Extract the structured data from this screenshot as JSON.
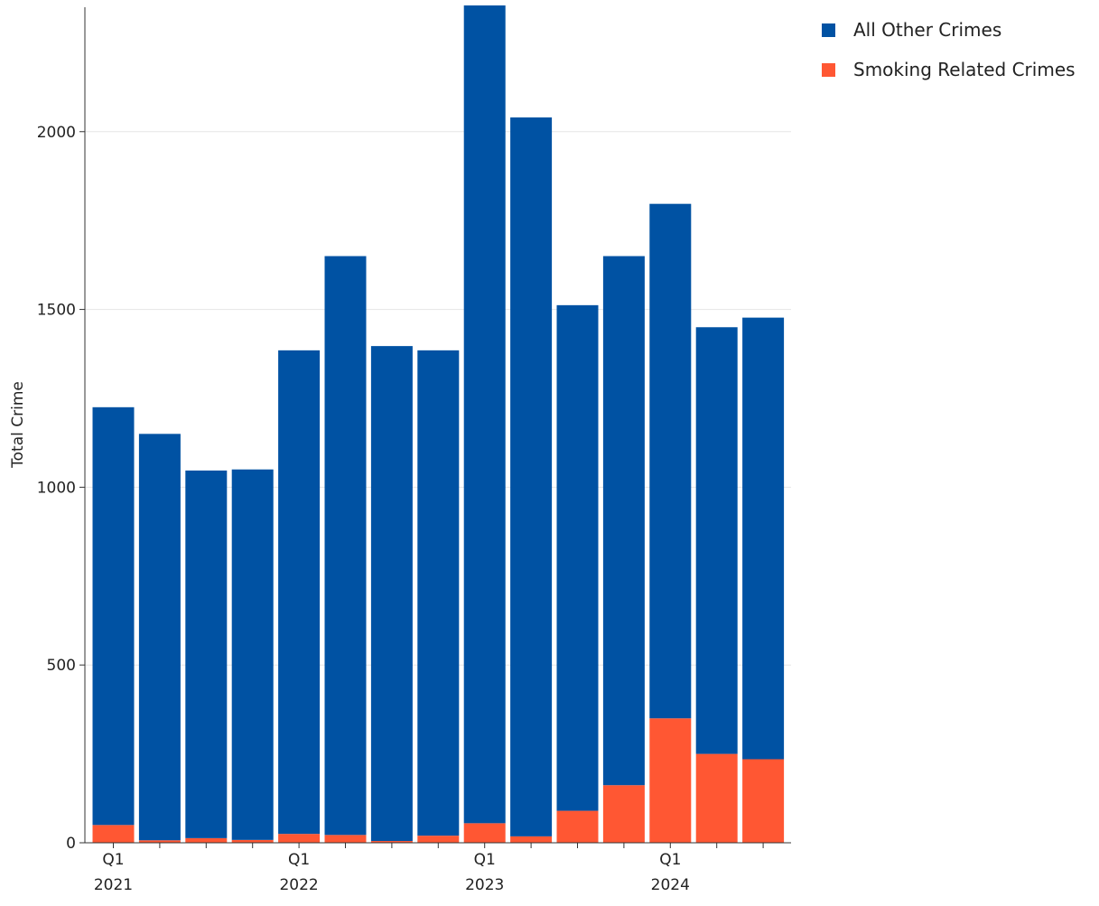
{
  "chart_data": {
    "type": "bar",
    "stacked": true,
    "ylabel": "Total Crime",
    "xlabel": "",
    "ylim": [
      0,
      2350
    ],
    "yticks": [
      0,
      500,
      1000,
      1500,
      2000
    ],
    "grid": true,
    "legend_position": "top-right",
    "categories": [
      "2021 Q1",
      "2021 Q2",
      "2021 Q3",
      "2021 Q4",
      "2022 Q1",
      "2022 Q2",
      "2022 Q3",
      "2022 Q4",
      "2023 Q1",
      "2023 Q2",
      "2023 Q3",
      "2023 Q4",
      "2024 Q1",
      "2024 Q2",
      "2024 Q3"
    ],
    "x_tick_labels": [
      {
        "index": 0,
        "line1": "Q1",
        "line2": "2021"
      },
      {
        "index": 4,
        "line1": "Q1",
        "line2": "2022"
      },
      {
        "index": 8,
        "line1": "Q1",
        "line2": "2023"
      },
      {
        "index": 12,
        "line1": "Q1",
        "line2": "2024"
      }
    ],
    "series": [
      {
        "name": "Smoking Related Crimes",
        "color": "#ff5733",
        "values": [
          50,
          7,
          13,
          8,
          25,
          22,
          5,
          20,
          55,
          18,
          90,
          162,
          350,
          250,
          235
        ]
      },
      {
        "name": "All Other Crimes",
        "color": "#0052a3",
        "values": [
          1175,
          1143,
          1034,
          1042,
          1360,
          1628,
          1392,
          1365,
          2300,
          2022,
          1422,
          1488,
          1447,
          1200,
          1242
        ]
      }
    ],
    "legend_order": [
      "All Other Crimes",
      "Smoking Related Crimes"
    ]
  }
}
